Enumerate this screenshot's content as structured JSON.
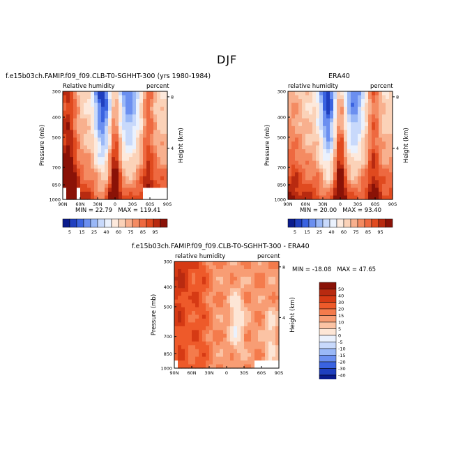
{
  "page": {
    "title": "DJF"
  },
  "chart_data": [
    {
      "type": "heatmap",
      "title": "f.e15b03ch.FAMIP.f09_f09.CLB-T0-SGHHT-300 (yrs 1980-1984)",
      "left_label": "Relative humidity",
      "right_label": "percent",
      "xlabel": "",
      "ylabel": "Pressure (mb)",
      "y2label": "Height (km)",
      "x_ticks": [
        "90N",
        "60N",
        "30N",
        "0",
        "30S",
        "60S",
        "90S"
      ],
      "y_ticks": [
        "300",
        "400",
        "500",
        "700",
        "850",
        "1000"
      ],
      "y2_ticks": [
        "8",
        "4"
      ],
      "min_label": "MIN = ",
      "min_value": "22.79",
      "max_label": "MAX = ",
      "max_value": "119.41",
      "colorbar": {
        "orientation": "horizontal",
        "labels": [
          "5",
          "15",
          "25",
          "40",
          "60",
          "75",
          "85",
          "95"
        ]
      }
    },
    {
      "type": "heatmap",
      "title": "ERA40",
      "left_label": "relative humidity",
      "right_label": "percent",
      "xlabel": "",
      "ylabel": "Pressure (mb)",
      "y2label": "Height (km)",
      "x_ticks": [
        "90N",
        "60N",
        "30N",
        "0",
        "30S",
        "60S",
        "90S"
      ],
      "y_ticks": [
        "300",
        "400",
        "500",
        "700",
        "850",
        "1000"
      ],
      "y2_ticks": [
        "8",
        "4"
      ],
      "min_label": "MIN = ",
      "min_value": "20.00",
      "max_label": "MAX = ",
      "max_value": "93.40",
      "colorbar": {
        "orientation": "horizontal",
        "labels": [
          "5",
          "15",
          "25",
          "40",
          "60",
          "75",
          "85",
          "95"
        ]
      }
    },
    {
      "type": "heatmap",
      "title": "f.e15b03ch.FAMIP.f09_f09.CLB-T0-SGHHT-300 - ERA40",
      "left_label": "relative humidity",
      "right_label": "percent",
      "xlabel": "",
      "ylabel": "Pressure (mb)",
      "y2label": "Height (km)",
      "x_ticks": [
        "90N",
        "60N",
        "30N",
        "0",
        "30S",
        "60S",
        "90S"
      ],
      "y_ticks": [
        "300",
        "400",
        "500",
        "700",
        "850",
        "1000"
      ],
      "y2_ticks": [
        "8",
        "4"
      ],
      "min_label": "MIN = ",
      "min_value": "-18.08",
      "max_label": "MAX = ",
      "max_value": "47.65",
      "colorbar": {
        "orientation": "vertical",
        "labels": [
          "50",
          "40",
          "30",
          "20",
          "15",
          "10",
          "5",
          "0",
          "-5",
          "-10",
          "-15",
          "-20",
          "-30",
          "-40",
          "-50"
        ]
      }
    }
  ],
  "palettes": {
    "abs": [
      "#0a1b8c",
      "#1f3fbf",
      "#3a63e0",
      "#6b8ff0",
      "#9ab8f7",
      "#c8d9fb",
      "#eaf1fd",
      "#fde9dc",
      "#fbd2b8",
      "#f8b08e",
      "#f48b62",
      "#ee6940",
      "#e04a1f",
      "#b82a10",
      "#8a1207",
      "#ffffff"
    ],
    "diff": [
      "#8a1207",
      "#b82a10",
      "#d63a14",
      "#ee5a2a",
      "#f47b4c",
      "#f89d74",
      "#fbc3a4",
      "#fde6d6",
      "#eaf1fd",
      "#c8d9fb",
      "#9ab8f7",
      "#6b8ff0",
      "#3a63e0",
      "#1f3fbf",
      "#0a1b8c",
      "#07106a",
      "#ffffff"
    ]
  }
}
